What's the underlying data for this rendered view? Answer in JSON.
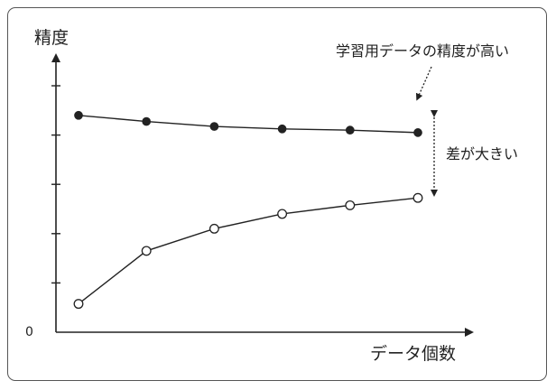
{
  "chart_data": {
    "type": "line",
    "title": "",
    "ylabel": "精度",
    "xlabel": "データ個数",
    "y_tick_labels": [
      "0"
    ],
    "x": [
      1,
      2,
      3,
      4,
      5,
      6
    ],
    "ylim": [
      0,
      1
    ],
    "series": [
      {
        "name": "",
        "values": [
          0.88,
          0.855,
          0.835,
          0.825,
          0.82,
          0.81
        ],
        "marker": "filled-circle"
      },
      {
        "name": "",
        "values": [
          0.115,
          0.33,
          0.42,
          0.48,
          0.515,
          0.545
        ],
        "marker": "open-circle"
      }
    ],
    "annotations": {
      "train_accuracy_high": "学習用データの精度が高い",
      "gap_large": "差が大きい"
    },
    "grid": false,
    "legend": "none"
  },
  "colors": {
    "line": "#222222",
    "axis": "#222222",
    "frame": "#555555",
    "annotation": "#222222"
  }
}
